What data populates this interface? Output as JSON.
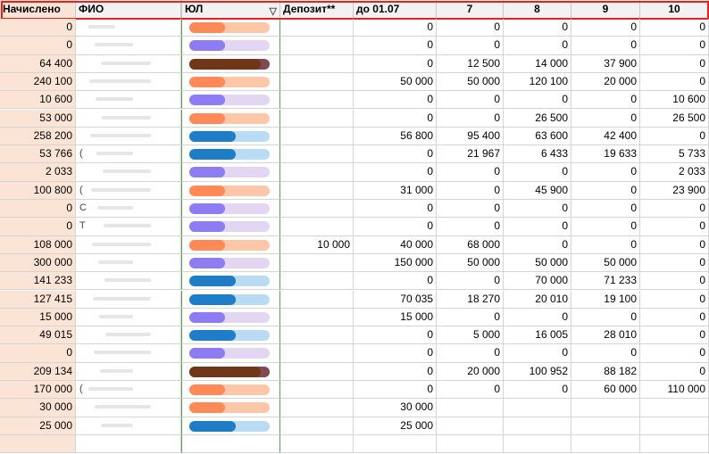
{
  "columns": [
    "Начислено",
    "ФИО",
    "ЮЛ",
    "Депозит**",
    "до 01.07",
    "7",
    "8",
    "9",
    "10"
  ],
  "filter_icon": "filter-dropdown-icon",
  "colors": {
    "accrued_fill": "#fbe4d5",
    "header_frame": "#e8211e",
    "orange": "#ff8a57",
    "orange_light": "#ffc6a8",
    "purple": "#8d7cf2",
    "purple_light": "#e3d6f3",
    "brown": "#6f3618",
    "brown_light": "#7f4a52",
    "blue": "#1f7cc6",
    "blue_light": "#b9dcf4"
  },
  "rows": [
    {
      "accrued": "0",
      "fio": "",
      "yul": "orange",
      "deposit": "",
      "to0107": "0",
      "c7": "0",
      "c8": "0",
      "c9": "0",
      "c10": "0"
    },
    {
      "accrued": "0",
      "fio": "",
      "yul": "purple",
      "deposit": "",
      "to0107": "0",
      "c7": "0",
      "c8": "0",
      "c9": "0",
      "c10": "0"
    },
    {
      "accrued": "64 400",
      "fio": "",
      "yul": "brown",
      "deposit": "",
      "to0107": "0",
      "c7": "12 500",
      "c8": "14 000",
      "c9": "37 900",
      "c10": "0"
    },
    {
      "accrued": "240 100",
      "fio": "",
      "yul": "orange",
      "deposit": "",
      "to0107": "50 000",
      "c7": "50 000",
      "c8": "120 100",
      "c9": "20 000",
      "c10": "0"
    },
    {
      "accrued": "10 600",
      "fio": "",
      "yul": "purple",
      "deposit": "",
      "to0107": "0",
      "c7": "0",
      "c8": "0",
      "c9": "0",
      "c10": "10 600"
    },
    {
      "accrued": "53 000",
      "fio": "",
      "yul": "orange",
      "deposit": "",
      "to0107": "0",
      "c7": "0",
      "c8": "26 500",
      "c9": "0",
      "c10": "26 500"
    },
    {
      "accrued": "258 200",
      "fio": "",
      "yul": "blue",
      "deposit": "",
      "to0107": "56 800",
      "c7": "95 400",
      "c8": "63 600",
      "c9": "42 400",
      "c10": "0"
    },
    {
      "accrued": "53 766",
      "fio": "(",
      "yul": "blue",
      "deposit": "",
      "to0107": "0",
      "c7": "21 967",
      "c8": "6 433",
      "c9": "19 633",
      "c10": "5 733"
    },
    {
      "accrued": "2 033",
      "fio": "",
      "yul": "purple",
      "deposit": "",
      "to0107": "0",
      "c7": "0",
      "c8": "0",
      "c9": "0",
      "c10": "2 033"
    },
    {
      "accrued": "100 800",
      "fio": "(",
      "yul": "orange",
      "deposit": "",
      "to0107": "31 000",
      "c7": "0",
      "c8": "45 900",
      "c9": "0",
      "c10": "23 900"
    },
    {
      "accrued": "0",
      "fio": "С",
      "yul": "purple",
      "deposit": "",
      "to0107": "0",
      "c7": "0",
      "c8": "0",
      "c9": "0",
      "c10": "0"
    },
    {
      "accrued": "0",
      "fio": "Т",
      "yul": "purple",
      "deposit": "",
      "to0107": "0",
      "c7": "0",
      "c8": "0",
      "c9": "0",
      "c10": "0"
    },
    {
      "accrued": "108 000",
      "fio": "",
      "yul": "orange",
      "deposit": "10 000",
      "to0107": "40 000",
      "c7": "68 000",
      "c8": "0",
      "c9": "0",
      "c10": "0"
    },
    {
      "accrued": "300 000",
      "fio": "",
      "yul": "purple",
      "deposit": "",
      "to0107": "150 000",
      "c7": "50 000",
      "c8": "50 000",
      "c9": "50 000",
      "c10": "0"
    },
    {
      "accrued": "141 233",
      "fio": "",
      "yul": "blue",
      "deposit": "",
      "to0107": "0",
      "c7": "0",
      "c8": "70 000",
      "c9": "71 233",
      "c10": "0"
    },
    {
      "accrued": "127 415",
      "fio": "",
      "yul": "blue",
      "deposit": "",
      "to0107": "70 035",
      "c7": "18 270",
      "c8": "20 010",
      "c9": "19 100",
      "c10": "0"
    },
    {
      "accrued": "15 000",
      "fio": "",
      "yul": "purple",
      "deposit": "",
      "to0107": "15 000",
      "c7": "0",
      "c8": "0",
      "c9": "0",
      "c10": "0"
    },
    {
      "accrued": "49 015",
      "fio": "",
      "yul": "blue",
      "deposit": "",
      "to0107": "0",
      "c7": "5 000",
      "c8": "16 005",
      "c9": "28 010",
      "c10": "0"
    },
    {
      "accrued": "0",
      "fio": "",
      "yul": "purple",
      "deposit": "",
      "to0107": "0",
      "c7": "0",
      "c8": "0",
      "c9": "0",
      "c10": "0"
    },
    {
      "accrued": "209 134",
      "fio": "",
      "yul": "brown",
      "deposit": "",
      "to0107": "0",
      "c7": "20 000",
      "c8": "100 952",
      "c9": "88 182",
      "c10": "0"
    },
    {
      "accrued": "170 000",
      "fio": "(",
      "yul": "orange",
      "deposit": "",
      "to0107": "0",
      "c7": "0",
      "c8": "0",
      "c9": "60 000",
      "c10": "110 000"
    },
    {
      "accrued": "30 000",
      "fio": "",
      "yul": "orange",
      "deposit": "",
      "to0107": "30 000",
      "c7": "",
      "c8": "",
      "c9": "",
      "c10": ""
    },
    {
      "accrued": "25 000",
      "fio": "",
      "yul": "blue",
      "deposit": "",
      "to0107": "25 000",
      "c7": "",
      "c8": "",
      "c9": "",
      "c10": ""
    },
    {
      "accrued": "",
      "fio": "",
      "yul": "",
      "deposit": "",
      "to0107": "",
      "c7": "",
      "c8": "",
      "c9": "",
      "c10": ""
    }
  ]
}
